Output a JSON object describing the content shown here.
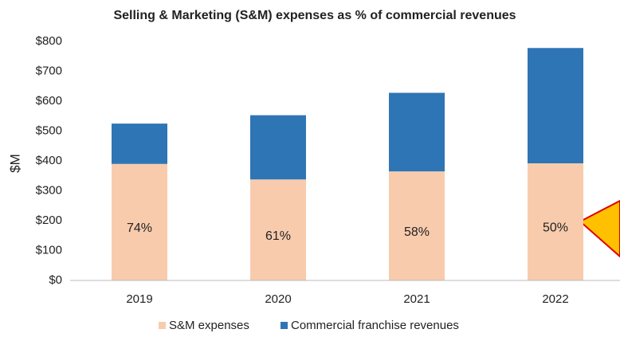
{
  "chart_data": {
    "type": "stacked_bar",
    "title": "Selling & Marketing (S&M) expenses as % of commercial revenues",
    "y_label": "$M",
    "categories": [
      "2019",
      "2020",
      "2021",
      "2022"
    ],
    "series": [
      {
        "name": "S&M expenses",
        "color": "#f8cbad",
        "values": [
          390,
          338,
          365,
          392
        ]
      },
      {
        "name": "Commercial franchise revenues",
        "color": "#2e75b6",
        "values": [
          135,
          215,
          263,
          386
        ]
      }
    ],
    "annotations": [
      "74%",
      "61%",
      "58%",
      "50%"
    ],
    "ylim": [
      0,
      800
    ],
    "yticks": [
      {
        "value": 0,
        "label": "$0"
      },
      {
        "value": 100,
        "label": "$100"
      },
      {
        "value": 200,
        "label": "$200"
      },
      {
        "value": 300,
        "label": "$300"
      },
      {
        "value": 400,
        "label": "$400"
      },
      {
        "value": 500,
        "label": "$500"
      },
      {
        "value": 600,
        "label": "$600"
      },
      {
        "value": 700,
        "label": "$700"
      },
      {
        "value": 800,
        "label": "$800"
      }
    ],
    "grid": false,
    "legend": "bottom"
  }
}
